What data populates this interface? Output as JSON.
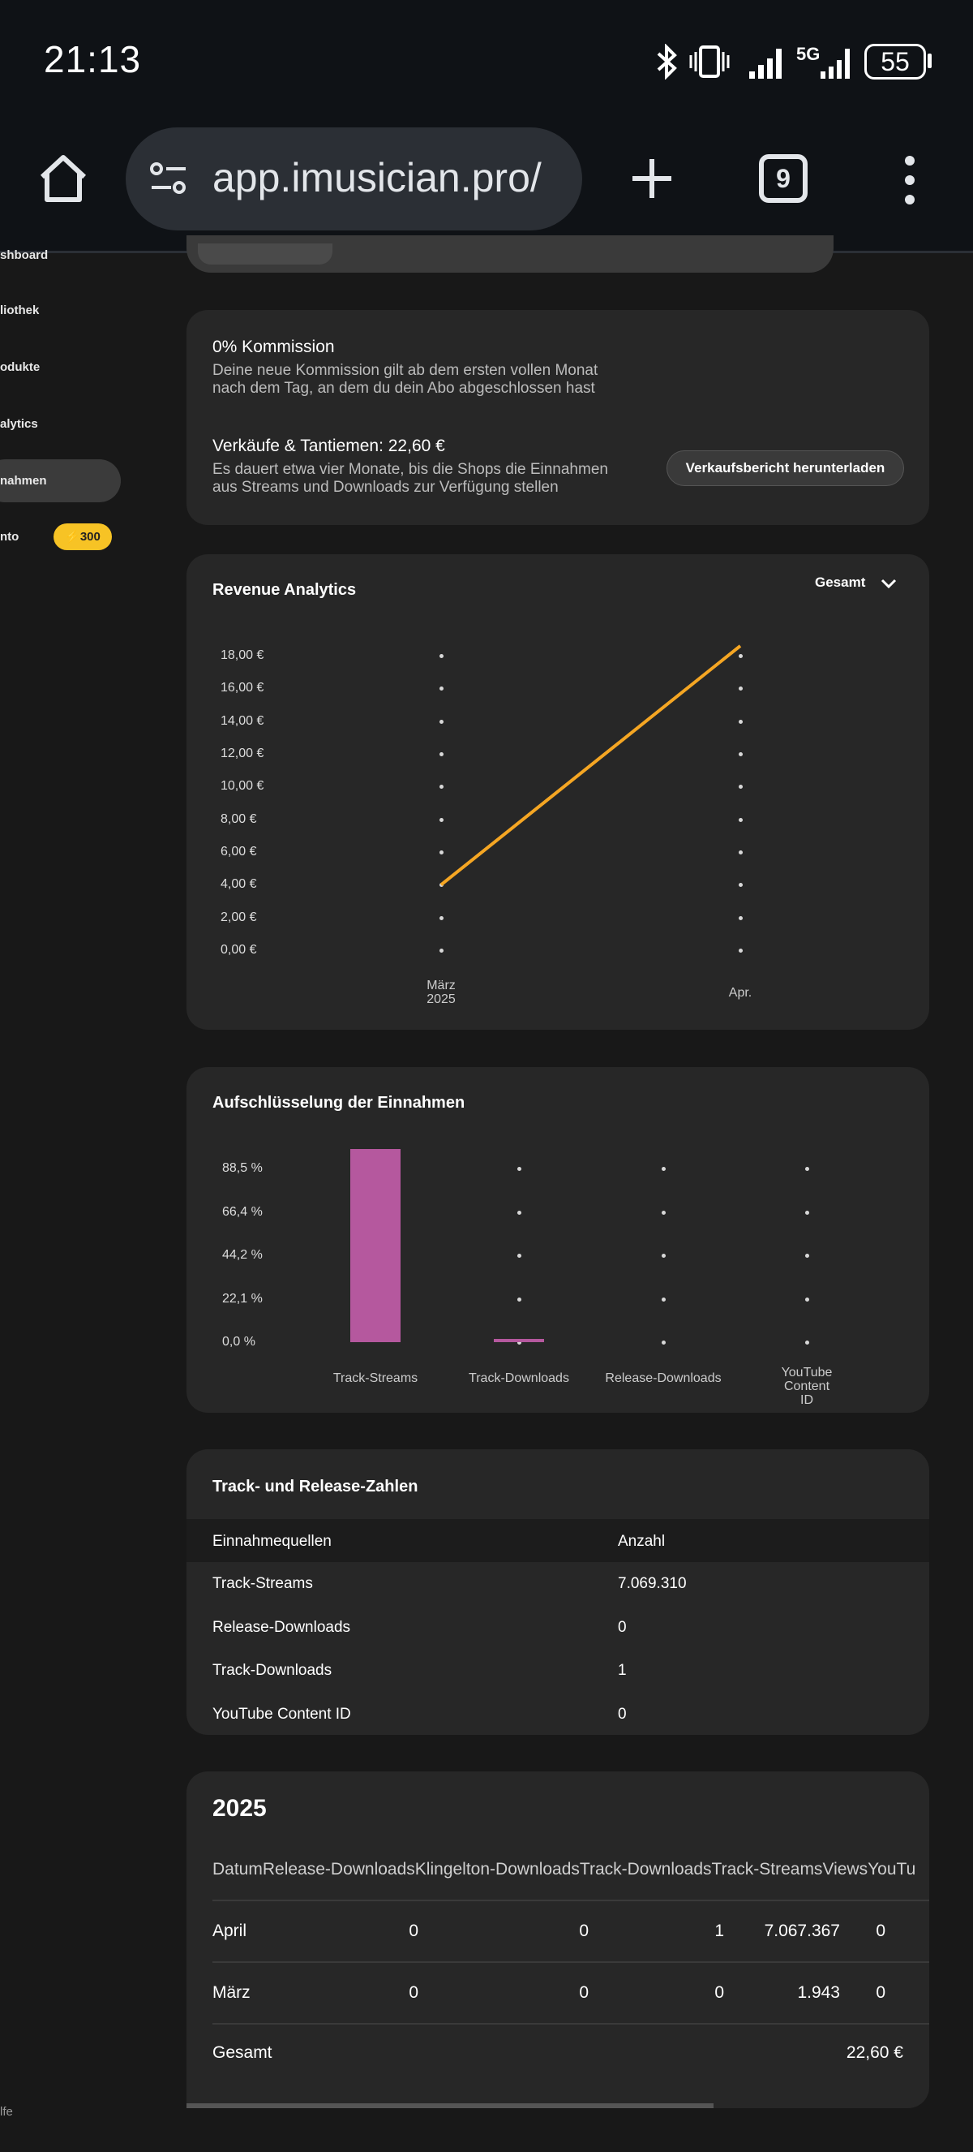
{
  "status_bar": {
    "time": "21:13",
    "battery": "55",
    "network": "5G"
  },
  "browser": {
    "url": "app.imusician.pro/",
    "tab_count": "9"
  },
  "sidebar": {
    "items": [
      {
        "label": "shboard"
      },
      {
        "label": "liothek"
      },
      {
        "label": "odukte"
      },
      {
        "label": "alytics"
      },
      {
        "label": "nahmen",
        "active": true
      },
      {
        "label": "nto",
        "badge": "300"
      }
    ],
    "footer": "lfe"
  },
  "commission": {
    "title": "0% Kommission",
    "text1": "Deine neue Kommission gilt ab dem ersten vollen Monat",
    "text2": "nach dem Tag, an dem du dein Abo abgeschlossen hast",
    "sales_title": "Verkäufe & Tantiemen: 22,60 €",
    "sales_text1": "Es dauert etwa vier Monate, bis die Shops die Einnahmen",
    "sales_text2": "aus Streams und Downloads zur Verfügung stellen",
    "download_button": "Verkaufsbericht herunterladen"
  },
  "revenue": {
    "title": "Revenue Analytics",
    "dropdown": "Gesamt"
  },
  "breakdown": {
    "title": "Aufschlüsselung der Einnahmen"
  },
  "chart_data": [
    {
      "type": "line",
      "title": "Revenue Analytics",
      "categories": [
        [
          "März",
          "2025"
        ],
        [
          "Apr."
        ]
      ],
      "values": [
        4.0,
        18.6
      ],
      "y_ticks": [
        "0,00 €",
        "2,00 €",
        "4,00 €",
        "6,00 €",
        "8,00 €",
        "10,00 €",
        "12,00 €",
        "14,00 €",
        "16,00 €",
        "18,00 €"
      ],
      "ylim": [
        0,
        18
      ],
      "color": "#f5a623"
    },
    {
      "type": "bar",
      "title": "Aufschlüsselung der Einnahmen",
      "categories": [
        [
          "Track-Streams"
        ],
        [
          "Track-Downloads"
        ],
        [
          "Release-Downloads"
        ],
        [
          "YouTube",
          "Content",
          "ID"
        ]
      ],
      "values": [
        98.5,
        1.5,
        0,
        0
      ],
      "y_ticks": [
        "0,0 %",
        "22,1 %",
        "44,2 %",
        "66,4 %",
        "88,5 %"
      ],
      "ylim": [
        0,
        88.5
      ],
      "color": "#b5589e"
    }
  ],
  "counts": {
    "title": "Track- und Release-Zahlen",
    "headers": [
      "Einnahmequellen",
      "Anzahl"
    ],
    "rows": [
      [
        "Track-Streams",
        "7.069.310"
      ],
      [
        "Release-Downloads",
        "0"
      ],
      [
        "Track-Downloads",
        "1"
      ],
      [
        "YouTube Content ID",
        "0"
      ]
    ]
  },
  "year_table": {
    "title": "2025",
    "headers": [
      "Datum",
      "Release-Downloads",
      "Klingelton-Downloads",
      "Track-Downloads",
      "Track-Streams",
      "Views",
      "YouTu"
    ],
    "rows": [
      [
        "April",
        "0",
        "0",
        "1",
        "7.067.367",
        "0"
      ],
      [
        "März",
        "0",
        "0",
        "0",
        "1.943",
        "0"
      ]
    ],
    "total_label": "Gesamt",
    "total_value": "22,60 €"
  }
}
